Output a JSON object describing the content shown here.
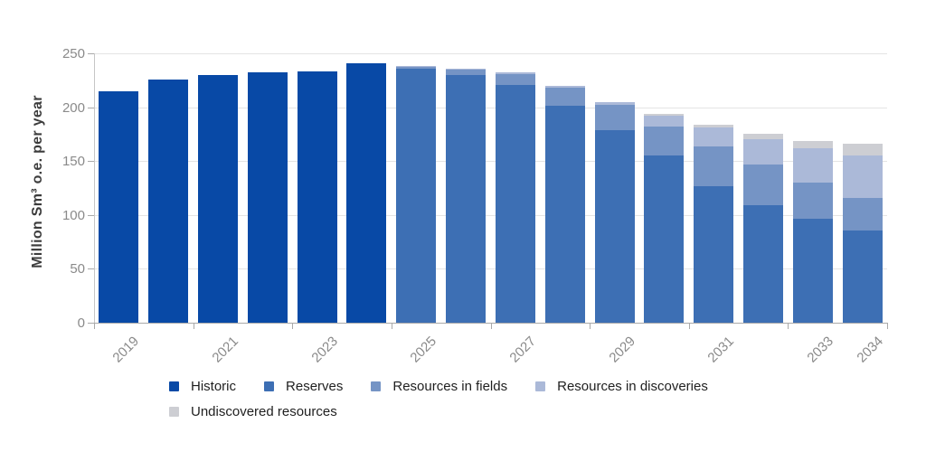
{
  "chart_data": {
    "type": "bar",
    "stacked": true,
    "title": "",
    "xlabel": "",
    "ylabel": "Million Sm³ o.e. per year",
    "ylim": [
      0,
      250
    ],
    "yticks": [
      0,
      50,
      100,
      150,
      200,
      250
    ],
    "grid": "horizontal",
    "legend_position": "bottom",
    "categories": [
      "2019",
      "2020",
      "2021",
      "2022",
      "2023",
      "2024",
      "2025",
      "2026",
      "2027",
      "2028",
      "2029",
      "2030",
      "2031",
      "2032",
      "2033",
      "2034"
    ],
    "x_axis_labels": [
      {
        "label": "2019",
        "slot": 0
      },
      {
        "label": "2021",
        "slot": 2
      },
      {
        "label": "2023",
        "slot": 4
      },
      {
        "label": "2025",
        "slot": 6
      },
      {
        "label": "2027",
        "slot": 8
      },
      {
        "label": "2029",
        "slot": 10
      },
      {
        "label": "2031",
        "slot": 12
      },
      {
        "label": "2033",
        "slot": 14
      },
      {
        "label": "2034",
        "slot": 15
      }
    ],
    "x_tick_slots": [
      0,
      2,
      4,
      6,
      8,
      10,
      12,
      14,
      16
    ],
    "series": [
      {
        "name": "Historic",
        "color": "#0849a6",
        "values": [
          215,
          226,
          230,
          232,
          233,
          241,
          0,
          0,
          0,
          0,
          0,
          0,
          0,
          0,
          0,
          0
        ]
      },
      {
        "name": "Reserves",
        "color": "#3d6fb4",
        "values": [
          0,
          0,
          0,
          0,
          0,
          0,
          236,
          230,
          221,
          201,
          179,
          155.5,
          127,
          109,
          96.5,
          85.5
        ]
      },
      {
        "name": "Resources in fields",
        "color": "#7594c5",
        "values": [
          0,
          0,
          0,
          0,
          0,
          0,
          1.5,
          4.5,
          10,
          17,
          23,
          26.5,
          36.5,
          38,
          33.5,
          30.5
        ]
      },
      {
        "name": "Resources in discoveries",
        "color": "#abb9d8",
        "values": [
          0,
          0,
          0,
          0,
          0,
          0,
          0.5,
          1.5,
          1.5,
          2,
          3,
          10,
          17.5,
          23,
          32,
          39.5
        ]
      },
      {
        "name": "Undiscovered resources",
        "color": "#cdced3",
        "values": [
          0,
          0,
          0,
          0,
          0,
          0,
          0,
          0,
          0,
          0,
          0,
          1.5,
          3,
          5,
          6.5,
          11
        ]
      }
    ],
    "legend_rows": [
      [
        0,
        1,
        2,
        3
      ],
      [
        4
      ]
    ]
  }
}
